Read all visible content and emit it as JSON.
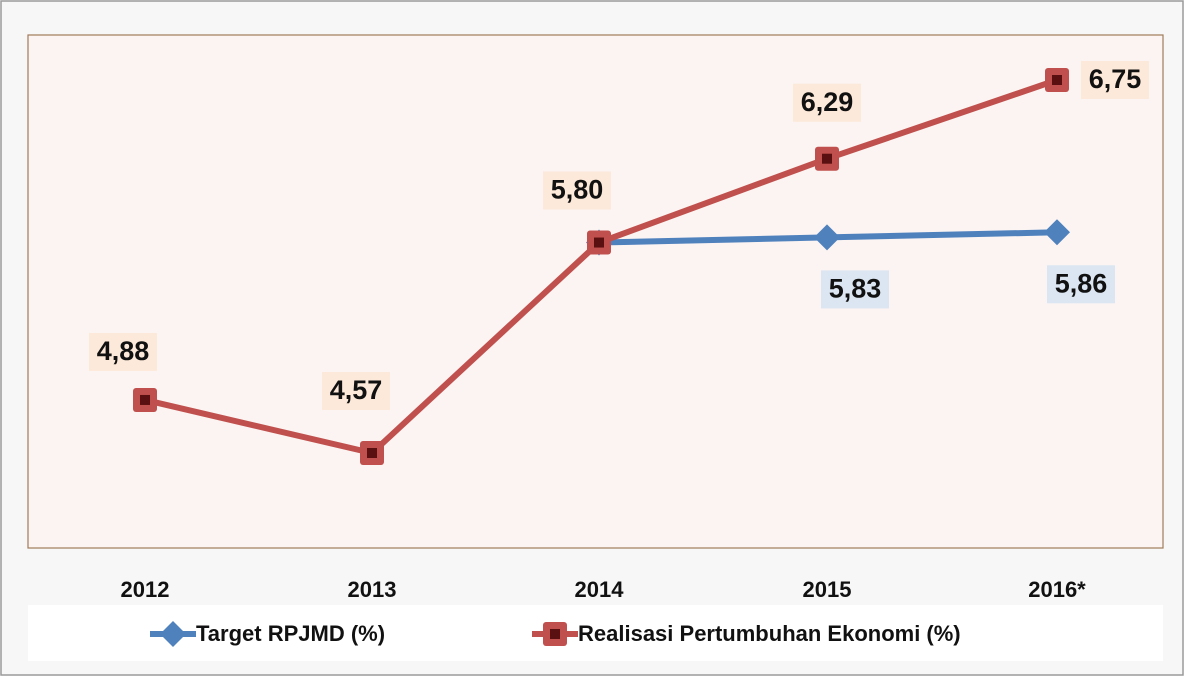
{
  "chart_data": {
    "type": "line",
    "categories": [
      "2012",
      "2013",
      "2014",
      "2015",
      "2016*"
    ],
    "series": [
      {
        "name": "Target RPJMD (%)",
        "color": "#4f81bd",
        "marker": "diamond",
        "values": [
          null,
          null,
          5.8,
          5.83,
          5.86
        ],
        "value_labels": [
          null,
          null,
          null,
          "5,83",
          "5,86"
        ]
      },
      {
        "name": "Realisasi Pertumbuhan Ekonomi (%)",
        "color": "#c0504d",
        "marker": "square",
        "values": [
          4.88,
          4.57,
          5.8,
          6.29,
          6.75
        ],
        "value_labels": [
          "4,88",
          "4,57",
          "5,80",
          "6,29",
          "6,75"
        ]
      }
    ],
    "legend": "bottom"
  }
}
